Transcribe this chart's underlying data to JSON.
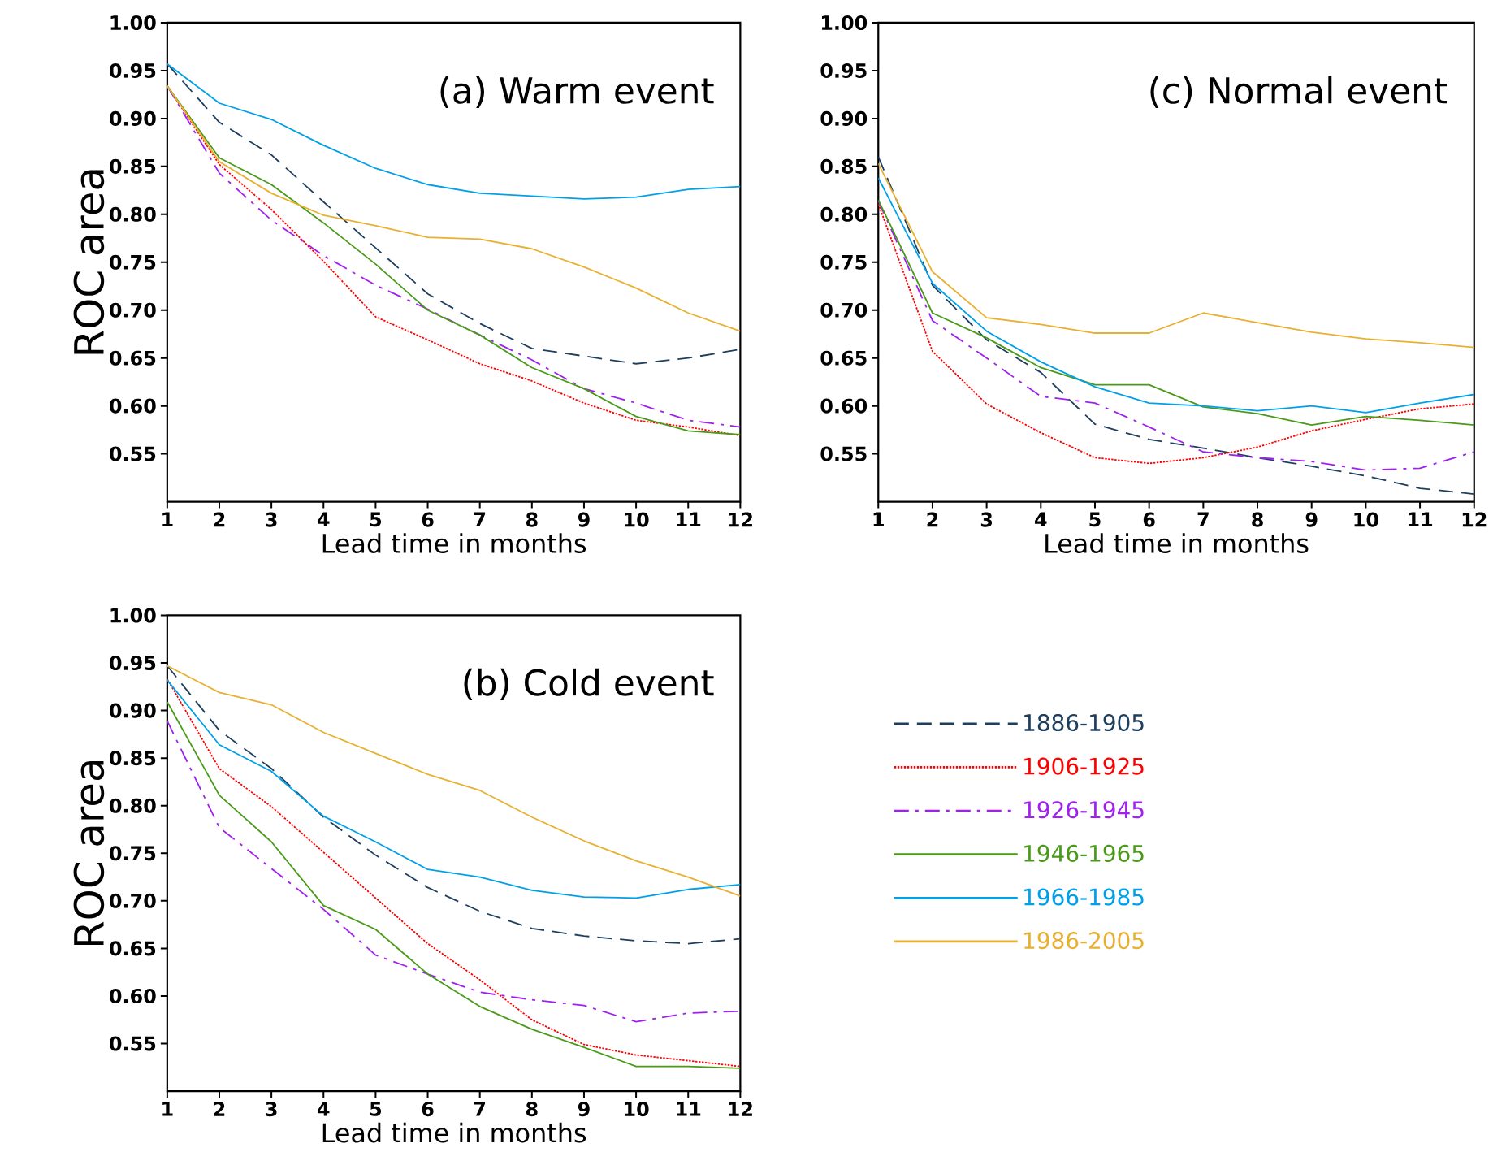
{
  "chart_data": [
    {
      "type": "line",
      "title": "(a) Warm event",
      "xlabel": "Lead time in months",
      "ylabel": "ROC area",
      "x": [
        1,
        2,
        3,
        4,
        5,
        6,
        7,
        8,
        9,
        10,
        11,
        12
      ],
      "xlim": [
        1,
        12
      ],
      "xticks": [
        1,
        2,
        3,
        4,
        5,
        6,
        7,
        8,
        9,
        10,
        11,
        12
      ],
      "ylim": [
        0.5,
        1.0
      ],
      "yticks": [
        {
          "value": 0.55,
          "label": "0.55"
        },
        {
          "value": 0.6,
          "label": "0.60"
        },
        {
          "value": 0.65,
          "label": "0.65"
        },
        {
          "value": 0.7,
          "label": "0.70"
        },
        {
          "value": 0.75,
          "label": "0.75"
        },
        {
          "value": 0.8,
          "label": "0.80"
        },
        {
          "value": 0.85,
          "label": "0.85"
        },
        {
          "value": 0.9,
          "label": "0.90"
        },
        {
          "value": 0.95,
          "label": "0.95"
        },
        {
          "value": 1.0,
          "label": "1.00"
        }
      ],
      "series": [
        {
          "color": "#1f3f5f",
          "line_style": "dashed",
          "values": [
            0.957,
            0.896,
            0.862,
            0.813,
            0.765,
            0.717,
            0.686,
            0.66,
            0.652,
            0.644,
            0.65,
            0.659
          ]
        },
        {
          "color": "#ff0000",
          "line_style": "dotted",
          "values": [
            0.934,
            0.852,
            0.805,
            0.751,
            0.693,
            0.669,
            0.644,
            0.626,
            0.603,
            0.585,
            0.578,
            0.569
          ]
        },
        {
          "color": "#a020f0",
          "line_style": "dashdot",
          "values": [
            0.934,
            0.843,
            0.794,
            0.757,
            0.726,
            0.701,
            0.674,
            0.648,
            0.618,
            0.603,
            0.585,
            0.578
          ]
        },
        {
          "color": "#4a9a1a",
          "line_style": "solid",
          "values": [
            0.934,
            0.859,
            0.831,
            0.791,
            0.748,
            0.7,
            0.674,
            0.64,
            0.618,
            0.589,
            0.574,
            0.57
          ]
        },
        {
          "color": "#00a0e8",
          "line_style": "solid",
          "values": [
            0.957,
            0.916,
            0.899,
            0.872,
            0.848,
            0.831,
            0.822,
            0.819,
            0.816,
            0.818,
            0.826,
            0.829
          ]
        },
        {
          "color": "#e8b030",
          "line_style": "solid",
          "values": [
            0.934,
            0.855,
            0.822,
            0.799,
            0.788,
            0.776,
            0.774,
            0.764,
            0.745,
            0.723,
            0.697,
            0.678
          ]
        }
      ]
    },
    {
      "type": "line",
      "title": "(c) Normal event",
      "xlabel": "Lead time in months",
      "x": [
        1,
        2,
        3,
        4,
        5,
        6,
        7,
        8,
        9,
        10,
        11,
        12
      ],
      "xlim": [
        1,
        12
      ],
      "xticks": [
        1,
        2,
        3,
        4,
        5,
        6,
        7,
        8,
        9,
        10,
        11,
        12
      ],
      "ylim": [
        0.5,
        1.0
      ],
      "yticks": [
        {
          "value": 0.55,
          "label": "0.55"
        },
        {
          "value": 0.6,
          "label": "0.60"
        },
        {
          "value": 0.65,
          "label": "0.65"
        },
        {
          "value": 0.7,
          "label": "0.70"
        },
        {
          "value": 0.75,
          "label": "0.75"
        },
        {
          "value": 0.8,
          "label": "0.80"
        },
        {
          "value": 0.85,
          "label": "0.85"
        },
        {
          "value": 0.9,
          "label": "0.90"
        },
        {
          "value": 0.95,
          "label": "0.95"
        },
        {
          "value": 1.0,
          "label": "1.00"
        }
      ],
      "series": [
        {
          "color": "#1f3f5f",
          "line_style": "dashed",
          "values": [
            0.86,
            0.726,
            0.669,
            0.635,
            0.581,
            0.565,
            0.556,
            0.546,
            0.537,
            0.527,
            0.514,
            0.508
          ]
        },
        {
          "color": "#ff0000",
          "line_style": "dotted",
          "values": [
            0.811,
            0.657,
            0.602,
            0.572,
            0.546,
            0.54,
            0.546,
            0.557,
            0.574,
            0.586,
            0.597,
            0.602
          ]
        },
        {
          "color": "#a020f0",
          "line_style": "dashdot",
          "values": [
            0.814,
            0.689,
            0.65,
            0.61,
            0.603,
            0.578,
            0.552,
            0.546,
            0.542,
            0.533,
            0.535,
            0.552
          ]
        },
        {
          "color": "#4a9a1a",
          "line_style": "solid",
          "values": [
            0.815,
            0.697,
            0.671,
            0.64,
            0.622,
            0.622,
            0.599,
            0.592,
            0.58,
            0.589,
            0.585,
            0.58
          ]
        },
        {
          "color": "#00a0e8",
          "line_style": "solid",
          "values": [
            0.838,
            0.728,
            0.678,
            0.646,
            0.62,
            0.603,
            0.6,
            0.595,
            0.6,
            0.593,
            0.603,
            0.612
          ]
        },
        {
          "color": "#e8b030",
          "line_style": "solid",
          "values": [
            0.853,
            0.74,
            0.692,
            0.685,
            0.676,
            0.676,
            0.697,
            0.687,
            0.677,
            0.67,
            0.666,
            0.661
          ]
        }
      ]
    },
    {
      "type": "line",
      "title": "(b) Cold event",
      "xlabel": "Lead time in months",
      "ylabel": "ROC area",
      "legend": "right",
      "x": [
        1,
        2,
        3,
        4,
        5,
        6,
        7,
        8,
        9,
        10,
        11,
        12
      ],
      "xlim": [
        1,
        12
      ],
      "xticks": [
        1,
        2,
        3,
        4,
        5,
        6,
        7,
        8,
        9,
        10,
        11,
        12
      ],
      "ylim": [
        0.5,
        1.0
      ],
      "yticks": [
        {
          "value": 0.55,
          "label": "0.55"
        },
        {
          "value": 0.6,
          "label": "0.60"
        },
        {
          "value": 0.65,
          "label": "0.65"
        },
        {
          "value": 0.7,
          "label": "0.70"
        },
        {
          "value": 0.75,
          "label": "0.75"
        },
        {
          "value": 0.8,
          "label": "0.80"
        },
        {
          "value": 0.85,
          "label": "0.85"
        },
        {
          "value": 0.9,
          "label": "0.90"
        },
        {
          "value": 0.95,
          "label": "0.95"
        },
        {
          "value": 1.0,
          "label": "1.00"
        }
      ],
      "series": [
        {
          "name": "1886-1905",
          "color": "#1f3f5f",
          "line_style": "dashed",
          "values": [
            0.947,
            0.879,
            0.839,
            0.788,
            0.748,
            0.714,
            0.689,
            0.671,
            0.663,
            0.658,
            0.655,
            0.66
          ]
        },
        {
          "name": "1906-1925",
          "color": "#ff0000",
          "line_style": "dotted",
          "values": [
            0.933,
            0.839,
            0.799,
            0.751,
            0.703,
            0.655,
            0.617,
            0.575,
            0.549,
            0.538,
            0.532,
            0.526
          ]
        },
        {
          "name": "1926-1945",
          "color": "#a020f0",
          "line_style": "dashdot",
          "values": [
            0.889,
            0.777,
            0.734,
            0.691,
            0.643,
            0.623,
            0.604,
            0.596,
            0.59,
            0.573,
            0.582,
            0.584
          ]
        },
        {
          "name": "1946-1965",
          "color": "#4a9a1a",
          "line_style": "solid",
          "values": [
            0.909,
            0.811,
            0.762,
            0.695,
            0.67,
            0.623,
            0.589,
            0.565,
            0.546,
            0.526,
            0.526,
            0.524
          ]
        },
        {
          "name": "1966-1985",
          "color": "#00a0e8",
          "line_style": "solid",
          "values": [
            0.932,
            0.864,
            0.836,
            0.789,
            0.762,
            0.733,
            0.725,
            0.711,
            0.704,
            0.703,
            0.712,
            0.717
          ]
        },
        {
          "name": "1986-2005",
          "color": "#e8b030",
          "line_style": "solid",
          "values": [
            0.947,
            0.919,
            0.906,
            0.877,
            0.855,
            0.833,
            0.816,
            0.788,
            0.763,
            0.742,
            0.725,
            0.705
          ]
        }
      ]
    }
  ]
}
